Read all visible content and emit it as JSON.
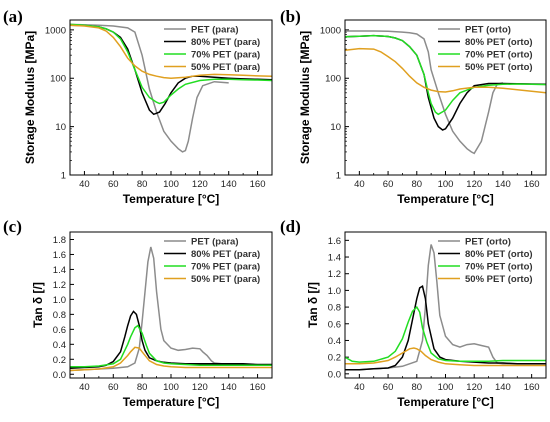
{
  "panel_labels": [
    "(a)",
    "(b)",
    "(c)",
    "(d)"
  ],
  "chart_data": [
    {
      "type": "line",
      "panel": "(a)",
      "xlabel": "Temperature [°C]",
      "ylabel": "Storage Modulus [MPa]",
      "xlim": [
        30,
        170
      ],
      "ylim": [
        1,
        1600
      ],
      "yscale": "log",
      "xticks": [
        "40",
        "60",
        "80",
        "100",
        "120",
        "140",
        "160"
      ],
      "yticks": [
        "1",
        "10",
        "100",
        "1000"
      ],
      "legend_position": "top-right",
      "series": [
        {
          "name": "PET (para)",
          "color": "#8c8c8c",
          "x": [
            30,
            50,
            60,
            70,
            75,
            80,
            85,
            90,
            95,
            100,
            105,
            108,
            110,
            112,
            115,
            118,
            122,
            130,
            140
          ],
          "y": [
            1300,
            1250,
            1200,
            1100,
            900,
            300,
            60,
            20,
            8,
            5,
            3.5,
            3.0,
            3.2,
            5,
            15,
            40,
            70,
            85,
            80
          ]
        },
        {
          "name": "80% PET (para)",
          "color": "#000000",
          "x": [
            30,
            40,
            50,
            55,
            60,
            65,
            70,
            75,
            80,
            85,
            88,
            92,
            96,
            100,
            105,
            110,
            115,
            120,
            130,
            140,
            150,
            160,
            170
          ],
          "y": [
            1250,
            1230,
            1150,
            1050,
            900,
            700,
            400,
            150,
            50,
            22,
            18,
            20,
            30,
            50,
            80,
            100,
            110,
            110,
            105,
            100,
            97,
            95,
            93
          ]
        },
        {
          "name": "70% PET (para)",
          "color": "#22dd22",
          "x": [
            30,
            40,
            50,
            55,
            60,
            65,
            70,
            75,
            80,
            85,
            90,
            92,
            95,
            100,
            105,
            110,
            120,
            130,
            140,
            150,
            160,
            170
          ],
          "y": [
            1300,
            1250,
            1150,
            1050,
            900,
            650,
            350,
            150,
            65,
            40,
            32,
            30,
            32,
            45,
            60,
            75,
            90,
            95,
            95,
            93,
            92,
            90
          ]
        },
        {
          "name": "50% PET (para)",
          "color": "#e0a020",
          "x": [
            30,
            40,
            50,
            55,
            60,
            65,
            70,
            75,
            80,
            85,
            90,
            95,
            100,
            110,
            120,
            130,
            140,
            150,
            160,
            170
          ],
          "y": [
            1250,
            1200,
            1100,
            950,
            700,
            450,
            260,
            180,
            140,
            120,
            110,
            103,
            100,
            105,
            115,
            120,
            118,
            115,
            112,
            110
          ]
        }
      ]
    },
    {
      "type": "line",
      "panel": "(b)",
      "xlabel": "Temperature [°C]",
      "ylabel": "Storage Modulus [MPa]",
      "xlim": [
        30,
        170
      ],
      "ylim": [
        1,
        1600
      ],
      "yscale": "log",
      "xticks": [
        "40",
        "60",
        "80",
        "100",
        "120",
        "140",
        "160"
      ],
      "yticks": [
        "1",
        "10",
        "100",
        "1000"
      ],
      "legend_position": "top-right",
      "series": [
        {
          "name": "PET (orto)",
          "color": "#8c8c8c",
          "x": [
            30,
            40,
            50,
            60,
            70,
            75,
            80,
            85,
            88,
            90,
            95,
            100,
            105,
            110,
            115,
            118,
            120,
            125,
            130,
            133,
            136,
            140
          ],
          "y": [
            950,
            950,
            950,
            940,
            900,
            870,
            820,
            650,
            350,
            150,
            50,
            18,
            8,
            5,
            3.5,
            3.0,
            2.8,
            5,
            20,
            50,
            75,
            80
          ]
        },
        {
          "name": "80% PET (orto)",
          "color": "#000000",
          "x": [
            30,
            40,
            50,
            60,
            65,
            70,
            75,
            80,
            85,
            88,
            92,
            95,
            98,
            100,
            105,
            110,
            115,
            120,
            130,
            140,
            150,
            160,
            170
          ],
          "y": [
            720,
            740,
            760,
            730,
            680,
            600,
            450,
            300,
            120,
            40,
            15,
            10,
            8.5,
            9,
            15,
            30,
            50,
            70,
            78,
            78,
            77,
            76,
            75
          ]
        },
        {
          "name": "70% PET (orto)",
          "color": "#22dd22",
          "x": [
            30,
            40,
            50,
            60,
            65,
            70,
            75,
            80,
            85,
            88,
            90,
            93,
            95,
            100,
            105,
            110,
            120,
            130,
            140,
            150,
            160,
            170
          ],
          "y": [
            720,
            740,
            760,
            730,
            680,
            600,
            450,
            300,
            120,
            50,
            30,
            20,
            18,
            22,
            35,
            50,
            65,
            72,
            75,
            76,
            75,
            74
          ]
        },
        {
          "name": "50% PET (orto)",
          "color": "#e0a020",
          "x": [
            30,
            40,
            50,
            55,
            60,
            65,
            70,
            75,
            80,
            85,
            90,
            95,
            100,
            105,
            110,
            120,
            130,
            140,
            150,
            160,
            170
          ],
          "y": [
            380,
            410,
            400,
            350,
            280,
            220,
            160,
            110,
            80,
            65,
            57,
            53,
            52,
            55,
            60,
            65,
            65,
            62,
            58,
            54,
            50
          ]
        }
      ]
    },
    {
      "type": "line",
      "panel": "(c)",
      "xlabel": "Temperature [°C]",
      "ylabel": "Tan δ [/]",
      "xlim": [
        30,
        170
      ],
      "ylim": [
        -0.05,
        1.9
      ],
      "yscale": "linear",
      "xticks": [
        "40",
        "60",
        "80",
        "100",
        "120",
        "140",
        "160"
      ],
      "yticks": [
        "0.0",
        "0.2",
        "0.4",
        "0.6",
        "0.8",
        "1.0",
        "1.2",
        "1.4",
        "1.6",
        "1.8"
      ],
      "legend_position": "top-right",
      "series": [
        {
          "name": "PET (para)",
          "color": "#8c8c8c",
          "x": [
            30,
            40,
            50,
            60,
            70,
            75,
            78,
            80,
            82,
            84,
            86,
            88,
            90,
            93,
            95,
            100,
            105,
            110,
            115,
            120,
            122,
            125,
            128,
            130,
            135,
            140
          ],
          "y": [
            0.05,
            0.06,
            0.07,
            0.08,
            0.1,
            0.15,
            0.35,
            0.7,
            1.1,
            1.5,
            1.7,
            1.55,
            1.1,
            0.6,
            0.45,
            0.35,
            0.32,
            0.33,
            0.35,
            0.34,
            0.3,
            0.25,
            0.18,
            0.15,
            0.14,
            0.13
          ]
        },
        {
          "name": "80% PET (para)",
          "color": "#000000",
          "x": [
            30,
            40,
            50,
            55,
            60,
            65,
            68,
            70,
            72,
            74,
            76,
            78,
            80,
            82,
            85,
            90,
            95,
            100,
            110,
            120,
            130,
            140,
            150,
            160,
            170
          ],
          "y": [
            0.08,
            0.09,
            0.1,
            0.12,
            0.17,
            0.3,
            0.5,
            0.65,
            0.78,
            0.84,
            0.8,
            0.65,
            0.45,
            0.32,
            0.22,
            0.18,
            0.16,
            0.15,
            0.14,
            0.14,
            0.14,
            0.14,
            0.14,
            0.13,
            0.13
          ]
        },
        {
          "name": "70% PET (para)",
          "color": "#22dd22",
          "x": [
            30,
            40,
            50,
            60,
            65,
            70,
            72,
            75,
            77,
            80,
            83,
            85,
            90,
            95,
            100,
            110,
            120,
            130,
            140,
            150,
            160,
            170
          ],
          "y": [
            0.1,
            0.1,
            0.11,
            0.14,
            0.2,
            0.4,
            0.5,
            0.62,
            0.65,
            0.55,
            0.38,
            0.28,
            0.18,
            0.15,
            0.14,
            0.13,
            0.12,
            0.12,
            0.12,
            0.12,
            0.12,
            0.12
          ]
        },
        {
          "name": "50% PET (para)",
          "color": "#e0a020",
          "x": [
            30,
            40,
            50,
            60,
            65,
            70,
            72,
            75,
            78,
            80,
            85,
            90,
            95,
            100,
            110,
            120,
            130,
            140,
            150,
            160,
            170
          ],
          "y": [
            0.05,
            0.06,
            0.07,
            0.1,
            0.15,
            0.25,
            0.3,
            0.36,
            0.35,
            0.3,
            0.18,
            0.13,
            0.11,
            0.1,
            0.09,
            0.09,
            0.09,
            0.09,
            0.09,
            0.09,
            0.09
          ]
        }
      ]
    },
    {
      "type": "line",
      "panel": "(d)",
      "xlabel": "Temperature [°C]",
      "ylabel": "Tan δ [/]",
      "xlim": [
        30,
        170
      ],
      "ylim": [
        -0.05,
        1.7
      ],
      "yscale": "linear",
      "xticks": [
        "40",
        "60",
        "80",
        "100",
        "120",
        "140",
        "160"
      ],
      "yticks": [
        "0.0",
        "0.2",
        "0.4",
        "0.6",
        "0.8",
        "1.0",
        "1.2",
        "1.4",
        "1.6"
      ],
      "legend_position": "top-right",
      "series": [
        {
          "name": "PET (orto)",
          "color": "#8c8c8c",
          "x": [
            30,
            40,
            50,
            60,
            70,
            80,
            84,
            86,
            88,
            90,
            92,
            94,
            96,
            100,
            105,
            110,
            115,
            120,
            125,
            130,
            133,
            136,
            140,
            150,
            160,
            170
          ],
          "y": [
            0.05,
            0.05,
            0.06,
            0.07,
            0.09,
            0.15,
            0.4,
            0.8,
            1.3,
            1.55,
            1.45,
            1.1,
            0.7,
            0.45,
            0.35,
            0.32,
            0.35,
            0.36,
            0.34,
            0.32,
            0.2,
            0.13,
            0.12,
            0.12,
            0.12,
            0.12
          ]
        },
        {
          "name": "80% PET (orto)",
          "color": "#000000",
          "x": [
            30,
            40,
            50,
            60,
            65,
            70,
            74,
            77,
            80,
            82,
            84,
            86,
            88,
            92,
            96,
            100,
            110,
            120,
            130,
            140,
            150,
            160,
            170
          ],
          "y": [
            0.05,
            0.05,
            0.06,
            0.07,
            0.1,
            0.2,
            0.4,
            0.65,
            0.9,
            1.03,
            1.05,
            0.9,
            0.6,
            0.3,
            0.2,
            0.17,
            0.15,
            0.14,
            0.13,
            0.13,
            0.12,
            0.12,
            0.12
          ]
        },
        {
          "name": "70% PET (orto)",
          "color": "#22dd22",
          "x": [
            30,
            35,
            40,
            50,
            60,
            65,
            70,
            74,
            77,
            80,
            82,
            84,
            87,
            90,
            95,
            100,
            110,
            120,
            130,
            140,
            150,
            160,
            170
          ],
          "y": [
            0.2,
            0.15,
            0.14,
            0.15,
            0.2,
            0.27,
            0.42,
            0.62,
            0.75,
            0.8,
            0.74,
            0.55,
            0.38,
            0.25,
            0.18,
            0.16,
            0.15,
            0.15,
            0.15,
            0.16,
            0.16,
            0.16,
            0.16
          ]
        },
        {
          "name": "50% PET (orto)",
          "color": "#e0a020",
          "x": [
            30,
            40,
            50,
            60,
            65,
            70,
            75,
            78,
            80,
            83,
            86,
            90,
            95,
            100,
            110,
            120,
            130,
            140,
            150,
            160,
            170
          ],
          "y": [
            0.12,
            0.12,
            0.13,
            0.16,
            0.2,
            0.25,
            0.3,
            0.31,
            0.3,
            0.27,
            0.22,
            0.17,
            0.14,
            0.12,
            0.11,
            0.1,
            0.1,
            0.1,
            0.1,
            0.1,
            0.1
          ]
        }
      ]
    }
  ]
}
